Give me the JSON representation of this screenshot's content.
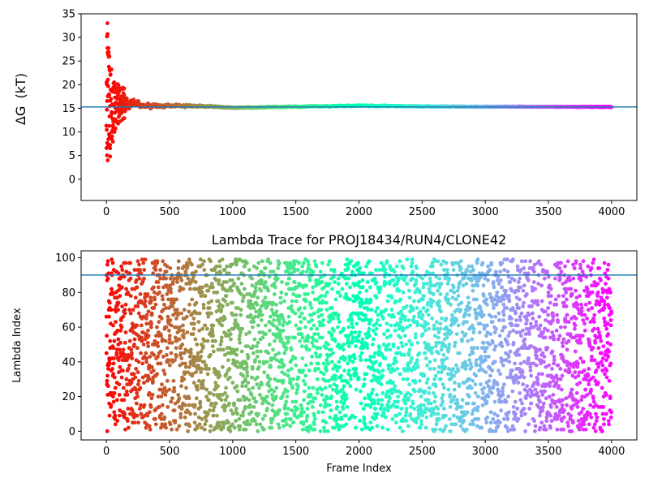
{
  "chart_data": [
    {
      "type": "scatter",
      "title": "",
      "xlabel": "",
      "ylabel_main": "ΔG",
      "ylabel_unit": "(kT)",
      "xlim": [
        -200,
        4200
      ],
      "ylim": [
        -4.5,
        35
      ],
      "xticks": [
        0,
        500,
        1000,
        1500,
        2000,
        2500,
        3000,
        3500,
        4000
      ],
      "yticks": [
        0,
        5,
        10,
        15,
        20,
        25,
        30,
        35
      ],
      "hline": 15.3,
      "hline_color": "#1f77b4",
      "colormap": "rainbow",
      "n_points": 4000,
      "series": [
        {
          "description": "running free-energy estimate per frame",
          "envelope": [
            {
              "x": 0,
              "low": 4.0,
              "high": 33.0
            },
            {
              "x": 50,
              "low": 7.5,
              "high": 21.0
            },
            {
              "x": 100,
              "low": 12.0,
              "high": 20.0
            },
            {
              "x": 200,
              "low": 13.5,
              "high": 18.5
            },
            {
              "x": 300,
              "low": 14.0,
              "high": 17.0
            },
            {
              "x": 500,
              "low": 14.5,
              "high": 16.5
            },
            {
              "x": 800,
              "low": 15.0,
              "high": 15.9
            },
            {
              "x": 1000,
              "low": 14.9,
              "high": 15.3
            },
            {
              "x": 1500,
              "low": 15.1,
              "high": 15.6
            },
            {
              "x": 2000,
              "low": 15.3,
              "high": 15.8
            },
            {
              "x": 2500,
              "low": 15.2,
              "high": 15.6
            },
            {
              "x": 3000,
              "low": 15.2,
              "high": 15.5
            },
            {
              "x": 4000,
              "low": 15.2,
              "high": 15.4
            }
          ]
        }
      ]
    },
    {
      "type": "scatter",
      "title": "Lambda Trace for PROJ18434/RUN4/CLONE42",
      "xlabel": "Frame Index",
      "ylabel": "Lambda Index",
      "xlim": [
        -200,
        4200
      ],
      "ylim": [
        -5,
        104
      ],
      "xticks": [
        0,
        500,
        1000,
        1500,
        2000,
        2500,
        3000,
        3500,
        4000
      ],
      "yticks": [
        0,
        20,
        40,
        60,
        80,
        100
      ],
      "hline": 90,
      "hline_color": "#1f77b4",
      "colormap": "rainbow",
      "n_points": 4000,
      "series": [
        {
          "description": "lambda window visited per frame",
          "value_range": [
            0,
            99
          ],
          "distribution": "approximately uniform over 0–99 at every frame"
        }
      ]
    }
  ]
}
